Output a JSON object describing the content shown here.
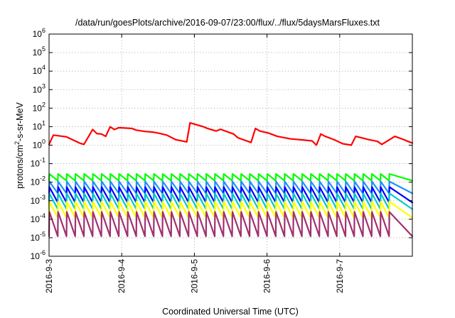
{
  "chart_data": {
    "type": "line",
    "title": "/data/run/goesPlots/archive/2016-09-07/23:00/flux/../flux/5daysMarsFluxes.txt",
    "xlabel": "Coordinated Universal Time (UTC)",
    "ylabel_prefix": "protons/cm",
    "ylabel_sup": "2",
    "ylabel_suffix": "-s-sr-MeV",
    "yscale": "log",
    "ylim": [
      1e-06,
      1000000.0
    ],
    "xlim": [
      "2016-09-03",
      "2016-09-08"
    ],
    "grid": true,
    "legend": "none",
    "x_ticks": [
      {
        "label": "2016-9-3",
        "day": 0
      },
      {
        "label": "2016-9-4",
        "day": 1
      },
      {
        "label": "2016-9-5",
        "day": 2
      },
      {
        "label": "2016-9-6",
        "day": 3
      },
      {
        "label": "2016-9-7",
        "day": 4
      }
    ],
    "y_ticks": [
      {
        "base": "10",
        "exp": "-6",
        "value": -6
      },
      {
        "base": "10",
        "exp": "-5",
        "value": -5
      },
      {
        "base": "10",
        "exp": "-4",
        "value": -4
      },
      {
        "base": "10",
        "exp": "-3",
        "value": -3
      },
      {
        "base": "10",
        "exp": "-2",
        "value": -2
      },
      {
        "base": "10",
        "exp": "-1",
        "value": -1
      },
      {
        "base": "10",
        "exp": "0",
        "value": 0
      },
      {
        "base": "10",
        "exp": "1",
        "value": 1
      },
      {
        "base": "10",
        "exp": "2",
        "value": 2
      },
      {
        "base": "10",
        "exp": "3",
        "value": 3
      },
      {
        "base": "10",
        "exp": "4",
        "value": 4
      },
      {
        "base": "10",
        "exp": "5",
        "value": 5
      },
      {
        "base": "10",
        "exp": "6",
        "value": 6
      }
    ],
    "series": [
      {
        "color": "#ff0000",
        "x": [
          "2016-09-03 00:00",
          "2016-09-03 01:26",
          "2016-09-03 05:46",
          "2016-09-03 10:05",
          "2016-09-03 11:31",
          "2016-09-03 14:24",
          "2016-09-03 15:50",
          "2016-09-03 17:17",
          "2016-09-03 18:43",
          "2016-09-03 20:10",
          "2016-09-03 21:36",
          "2016-09-03 23:02",
          "2016-09-04 03:22",
          "2016-09-04 04:48",
          "2016-09-04 07:41",
          "2016-09-04 10:34",
          "2016-09-04 12:00",
          "2016-09-04 14:53",
          "2016-09-04 17:46",
          "2016-09-04 21:29",
          "2016-09-04 22:34",
          "2016-09-05 02:53",
          "2016-09-05 04:19",
          "2016-09-05 07:12",
          "2016-09-05 08:38",
          "2016-09-05 12:58",
          "2016-09-05 14:24",
          "2016-09-05 18:43",
          "2016-09-05 20:10",
          "2016-09-05 21:36",
          "2016-09-06 00:29",
          "2016-09-06 03:22",
          "2016-09-06 07:41",
          "2016-09-06 12:00",
          "2016-09-06 14:53",
          "2016-09-06 16:19",
          "2016-09-06 17:46",
          "2016-09-06 19:12",
          "2016-09-06 22:05",
          "2016-09-07 00:58",
          "2016-09-07 03:50",
          "2016-09-07 05:17",
          "2016-09-07 09:36",
          "2016-09-07 12:29",
          "2016-09-07 13:55",
          "2016-09-07 18:14",
          "2016-09-07 21:07",
          "2016-09-07 22:34",
          "2016-09-08 00:00"
        ],
        "y": [
          1.1,
          3.5,
          2.8,
          1.3,
          1.1,
          7.0,
          4.2,
          4.0,
          3.0,
          9.8,
          7.0,
          8.8,
          8.0,
          6.5,
          5.5,
          5.0,
          4.5,
          3.5,
          2.0,
          1.5,
          16.0,
          10.0,
          8.0,
          5.8,
          7.2,
          4.0,
          2.5,
          1.4,
          8.0,
          5.8,
          4.5,
          3.0,
          2.2,
          1.9,
          1.7,
          1.0,
          4.0,
          3.0,
          2.0,
          1.2,
          1.0,
          3.0,
          2.0,
          1.6,
          1.1,
          3.0,
          2.0,
          1.6,
          1.3
        ]
      },
      {
        "color": "#00ff00",
        "sawtooth": {
          "start": "2016-09-03 00:00",
          "period_days": 0.12,
          "low": 0.012,
          "high": 0.028,
          "peaks": 40
        }
      },
      {
        "color": "#1e90ff",
        "sawtooth": {
          "start": "2016-09-03 00:00",
          "period_days": 0.12,
          "low": 0.0025,
          "high": 0.011,
          "peaks": 40
        }
      },
      {
        "color": "#0000ff",
        "sawtooth": {
          "start": "2016-09-03 00:00",
          "period_days": 0.12,
          "low": 0.0008,
          "high": 0.0055,
          "peaks": 40
        }
      },
      {
        "color": "#00c8c8",
        "sawtooth": {
          "start": "2016-09-03 00:00",
          "period_days": 0.12,
          "low": 0.00035,
          "high": 0.0025,
          "peaks": 40
        }
      },
      {
        "color": "#ffff00",
        "sawtooth": {
          "start": "2016-09-03 00:00",
          "period_days": 0.12,
          "low": 0.00012,
          "high": 0.0009,
          "peaks": 40
        }
      },
      {
        "color": "#a0306e",
        "sawtooth": {
          "start": "2016-09-03 00:00",
          "period_days": 0.12,
          "low": 1.2e-05,
          "high": 0.00025,
          "peaks": 40
        }
      }
    ]
  }
}
